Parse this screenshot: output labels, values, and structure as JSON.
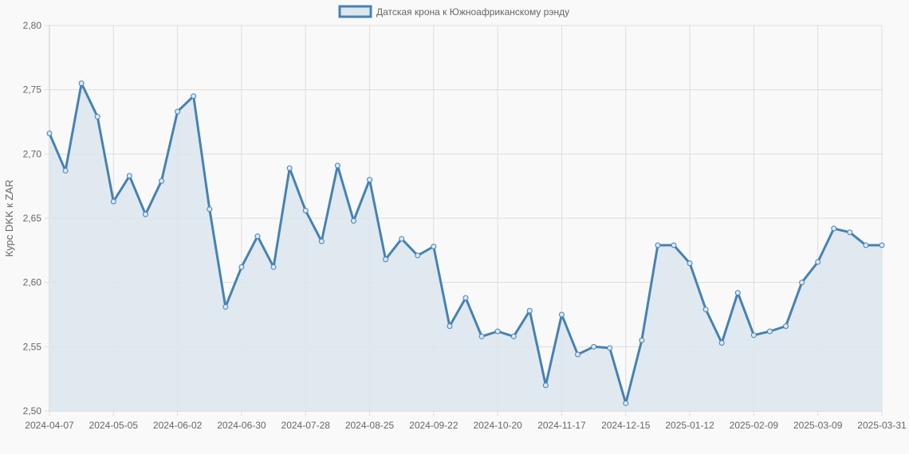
{
  "chart_data": {
    "type": "line",
    "title": "",
    "xlabel": "",
    "ylabel": "Курс DKK к ZAR",
    "ylim": [
      2.5,
      2.8
    ],
    "yticks": [
      "2,80",
      "2,75",
      "2,70",
      "2,65",
      "2,60",
      "2,55",
      "2,50"
    ],
    "ytick_values": [
      2.8,
      2.75,
      2.7,
      2.65,
      2.6,
      2.55,
      2.5
    ],
    "xtick_labels": [
      "2024-04-07",
      "2024-05-05",
      "2024-06-02",
      "2024-06-30",
      "2024-07-28",
      "2024-08-25",
      "2024-09-22",
      "2024-10-20",
      "2024-11-17",
      "2024-12-15",
      "2025-01-12",
      "2025-02-09",
      "2025-03-09",
      "2025-03-31"
    ],
    "grid": true,
    "legend_position": "top",
    "fill": true,
    "x": [
      "2024-04-07",
      "2024-04-14",
      "2024-04-21",
      "2024-04-28",
      "2024-05-05",
      "2024-05-12",
      "2024-05-19",
      "2024-05-26",
      "2024-06-02",
      "2024-06-09",
      "2024-06-16",
      "2024-06-23",
      "2024-06-30",
      "2024-07-07",
      "2024-07-14",
      "2024-07-21",
      "2024-07-28",
      "2024-08-04",
      "2024-08-11",
      "2024-08-18",
      "2024-08-25",
      "2024-09-01",
      "2024-09-08",
      "2024-09-15",
      "2024-09-22",
      "2024-09-29",
      "2024-10-06",
      "2024-10-13",
      "2024-10-20",
      "2024-10-27",
      "2024-11-03",
      "2024-11-10",
      "2024-11-17",
      "2024-11-24",
      "2024-12-01",
      "2024-12-08",
      "2024-12-15",
      "2024-12-22",
      "2024-12-29",
      "2025-01-05",
      "2025-01-12",
      "2025-01-19",
      "2025-01-26",
      "2025-02-02",
      "2025-02-09",
      "2025-02-16",
      "2025-02-23",
      "2025-03-02",
      "2025-03-09",
      "2025-03-16",
      "2025-03-23",
      "2025-03-30",
      "2025-03-31"
    ],
    "series": [
      {
        "name": "Датская крона к Южноафриканскому рэнду",
        "color": "#4682b4",
        "fill_color": "#dce6ee",
        "values": [
          2.716,
          2.687,
          2.755,
          2.729,
          2.663,
          2.683,
          2.653,
          2.679,
          2.733,
          2.745,
          2.657,
          2.581,
          2.612,
          2.636,
          2.612,
          2.689,
          2.656,
          2.632,
          2.691,
          2.648,
          2.68,
          2.618,
          2.634,
          2.621,
          2.628,
          2.566,
          2.588,
          2.558,
          2.562,
          2.558,
          2.578,
          2.52,
          2.575,
          2.544,
          2.55,
          2.549,
          2.506,
          2.555,
          2.629,
          2.629,
          2.615,
          2.579,
          2.553,
          2.592,
          2.559,
          2.562,
          2.566,
          2.6,
          2.616,
          2.642,
          2.639,
          2.629,
          2.629
        ]
      }
    ]
  },
  "legend": {
    "label": "Датская крона к Южноафриканскому рэнду"
  },
  "colors": {
    "line": "#4682b4",
    "fill": "#dce6ee",
    "grid": "#dddddd",
    "background": "#f9f9f9",
    "text": "#666666"
  }
}
